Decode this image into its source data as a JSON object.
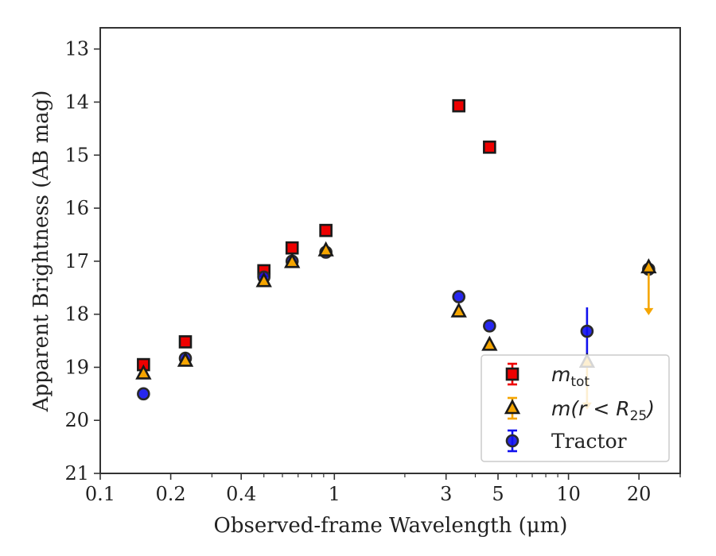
{
  "chart_data": {
    "type": "scatter",
    "xlabel": "Observed-frame Wavelength (μm)",
    "ylabel": "Apparent Brightness (AB mag)",
    "xscale": "log",
    "xlim": [
      0.1,
      30
    ],
    "ylim": [
      21,
      12.6
    ],
    "y_inverted": true,
    "x_ticks": [
      0.1,
      0.2,
      0.4,
      1,
      3,
      5,
      10,
      20
    ],
    "x_tick_labels": [
      "0.1",
      "0.2",
      "0.4",
      "1",
      "3",
      "5",
      "10",
      "20"
    ],
    "y_ticks": [
      13,
      14,
      15,
      16,
      17,
      18,
      19,
      20,
      21
    ],
    "y_tick_labels": [
      "13",
      "14",
      "15",
      "16",
      "17",
      "18",
      "19",
      "20",
      "21"
    ],
    "grid": false,
    "legend": "lower-right",
    "series": [
      {
        "name": "m_tot",
        "legend_main": "m",
        "legend_sub": "tot",
        "marker": "square",
        "color": "#ee0000",
        "edge_color": "#1a1a1a",
        "points": [
          {
            "x": 0.153,
            "y": 18.95
          },
          {
            "x": 0.231,
            "y": 18.52
          },
          {
            "x": 0.5,
            "y": 17.18
          },
          {
            "x": 0.66,
            "y": 16.75
          },
          {
            "x": 0.92,
            "y": 16.42
          },
          {
            "x": 3.4,
            "y": 14.07
          },
          {
            "x": 4.6,
            "y": 14.85
          }
        ]
      },
      {
        "name": "m(r<R25)",
        "legend_main": "m(r < R",
        "legend_sub": "25",
        "legend_close": ")",
        "marker": "triangle",
        "color": "#f5a500",
        "edge_color": "#1a1a1a",
        "points": [
          {
            "x": 0.153,
            "y": 19.12
          },
          {
            "x": 0.231,
            "y": 18.88
          },
          {
            "x": 0.5,
            "y": 17.38
          },
          {
            "x": 0.66,
            "y": 17.02
          },
          {
            "x": 0.92,
            "y": 16.8
          },
          {
            "x": 3.4,
            "y": 17.95
          },
          {
            "x": 4.6,
            "y": 18.58
          },
          {
            "x": 12.0,
            "y": 18.9,
            "upper_limit": true
          },
          {
            "x": 22.0,
            "y": 17.12,
            "upper_limit": true
          }
        ]
      },
      {
        "name": "Tractor",
        "legend_main": "Tractor",
        "marker": "circle",
        "color": "#1010ee",
        "edge_color": "#2a2a2a",
        "points": [
          {
            "x": 0.153,
            "y": 19.5
          },
          {
            "x": 0.231,
            "y": 18.83
          },
          {
            "x": 0.5,
            "y": 17.3
          },
          {
            "x": 0.66,
            "y": 17.0
          },
          {
            "x": 0.92,
            "y": 16.83
          },
          {
            "x": 3.4,
            "y": 17.67
          },
          {
            "x": 4.6,
            "y": 18.22
          },
          {
            "x": 12.0,
            "y": 18.32,
            "yerr": 0.45
          },
          {
            "x": 22.0,
            "y": 17.15,
            "yerr": 0.05
          }
        ]
      }
    ]
  }
}
